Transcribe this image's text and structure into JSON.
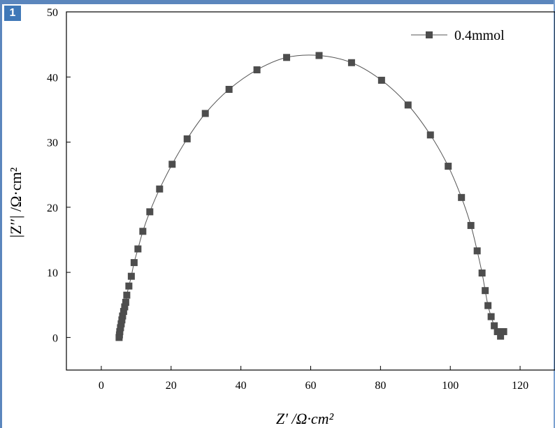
{
  "window": {
    "badge": "1",
    "frame_color": "#5b86bd",
    "badge_color": "#3f78b8"
  },
  "chart_data": {
    "type": "scatter",
    "title": "",
    "xlabel": "Z′ /Ω·cm²",
    "ylabel": "|Z′′| /Ω·cm²",
    "xlim": [
      -10,
      130
    ],
    "ylim": [
      -5,
      50
    ],
    "xticks": [
      0,
      20,
      40,
      60,
      80,
      100,
      120
    ],
    "yticks": [
      0,
      10,
      20,
      30,
      40,
      50
    ],
    "grid": false,
    "legend": "top-right",
    "series": [
      {
        "name": "0.4mmol",
        "color": "#4d4d4d",
        "marker": "square",
        "line": true,
        "points": [
          [
            5.1,
            0.0
          ],
          [
            5.2,
            0.4
          ],
          [
            5.3,
            0.9
          ],
          [
            5.5,
            1.5
          ],
          [
            5.7,
            2.1
          ],
          [
            5.9,
            2.7
          ],
          [
            6.1,
            3.3
          ],
          [
            6.4,
            4.0
          ],
          [
            6.7,
            4.7
          ],
          [
            7.0,
            5.4
          ],
          [
            7.3,
            6.5
          ],
          [
            7.9,
            7.9
          ],
          [
            8.6,
            9.4
          ],
          [
            9.4,
            11.5
          ],
          [
            10.5,
            13.6
          ],
          [
            11.9,
            16.3
          ],
          [
            13.9,
            19.3
          ],
          [
            16.7,
            22.8
          ],
          [
            20.3,
            26.6
          ],
          [
            24.6,
            30.5
          ],
          [
            29.8,
            34.4
          ],
          [
            36.6,
            38.1
          ],
          [
            44.6,
            41.1
          ],
          [
            53.1,
            43.0
          ],
          [
            62.4,
            43.3
          ],
          [
            71.7,
            42.2
          ],
          [
            80.3,
            39.5
          ],
          [
            87.9,
            35.7
          ],
          [
            94.3,
            31.1
          ],
          [
            99.4,
            26.3
          ],
          [
            103.2,
            21.5
          ],
          [
            105.9,
            17.2
          ],
          [
            107.7,
            13.3
          ],
          [
            109.1,
            9.9
          ],
          [
            110.0,
            7.2
          ],
          [
            110.8,
            4.9
          ],
          [
            111.7,
            3.2
          ],
          [
            112.6,
            1.8
          ],
          [
            113.5,
            0.9
          ],
          [
            114.4,
            0.2
          ],
          [
            115.3,
            0.9
          ]
        ]
      }
    ]
  }
}
